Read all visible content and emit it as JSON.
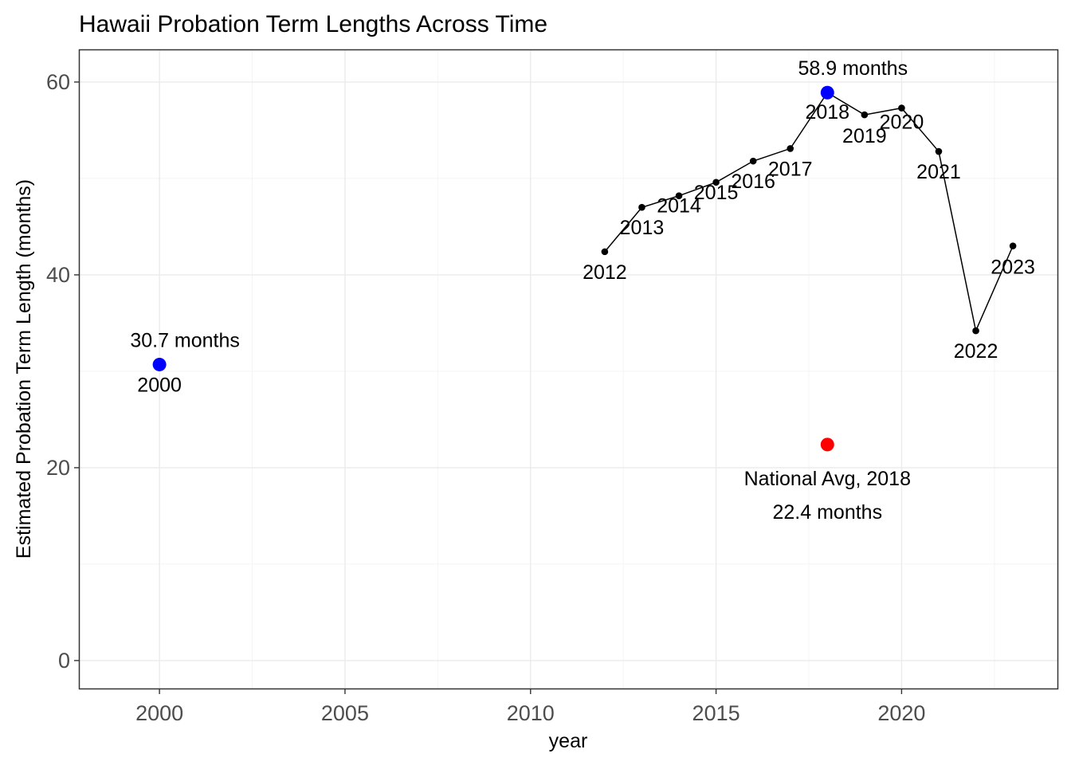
{
  "chart_data": {
    "type": "scatter",
    "title": "Hawaii Probation Term Lengths Across Time",
    "xlabel": "year",
    "ylabel": "Estimated Probation Term Length (months)",
    "xlim": [
      1997.85,
      2024.2
    ],
    "ylim": [
      -2.9,
      63.3
    ],
    "x_ticks": [
      2000,
      2005,
      2010,
      2015,
      2020
    ],
    "y_ticks": [
      0,
      20,
      40,
      60
    ],
    "grid": true,
    "series": [
      {
        "line": true,
        "color": "#000000",
        "points": [
          {
            "x": 2012,
            "y": 42.4,
            "label": "2012"
          },
          {
            "x": 2013,
            "y": 47.0,
            "label": "2013"
          },
          {
            "x": 2014,
            "y": 48.2,
            "label": "2014"
          },
          {
            "x": 2015,
            "y": 49.6,
            "label": "2015"
          },
          {
            "x": 2016,
            "y": 51.8,
            "label": "2016"
          },
          {
            "x": 2017,
            "y": 53.1,
            "label": "2017"
          },
          {
            "x": 2018,
            "y": 58.9,
            "label": "2018"
          },
          {
            "x": 2019,
            "y": 56.6,
            "label": "2019"
          },
          {
            "x": 2020,
            "y": 57.3,
            "label": "2020"
          },
          {
            "x": 2021,
            "y": 52.8,
            "label": "2021"
          },
          {
            "x": 2022,
            "y": 34.2,
            "label": "2022"
          },
          {
            "x": 2023,
            "y": 43.0,
            "label": "2023"
          }
        ]
      },
      {
        "line": false,
        "color": "#0000ff",
        "points": [
          {
            "x": 2000,
            "y": 30.7,
            "label": "2000",
            "value_label": "30.7 months"
          },
          {
            "x": 2018,
            "y": 58.9,
            "value_label": "58.9 months"
          }
        ]
      },
      {
        "line": false,
        "color": "#ff0000",
        "points": [
          {
            "x": 2018,
            "y": 22.4,
            "label": "National Avg, 2018",
            "value_label": "22.4 months"
          }
        ]
      }
    ]
  }
}
